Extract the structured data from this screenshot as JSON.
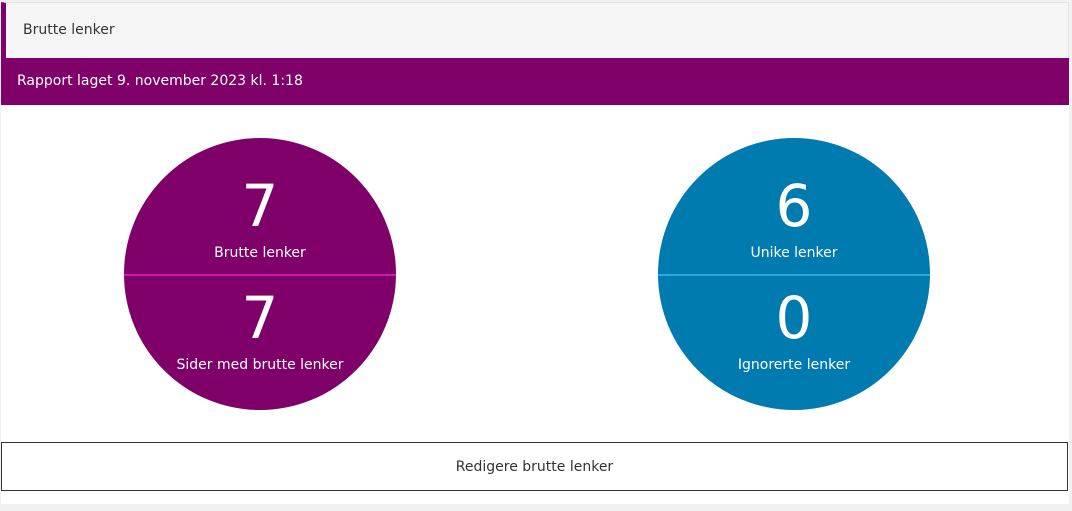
{
  "header": {
    "title": "Brutte lenker"
  },
  "report": {
    "text": "Rapport laget 9. november 2023 kl. 1:18"
  },
  "stats": {
    "left": {
      "top_value": "7",
      "top_label": "Brutte lenker",
      "bottom_value": "7",
      "bottom_label": "Sider med brutte lenker",
      "color": "#800069"
    },
    "right": {
      "top_value": "6",
      "top_label": "Unike lenker",
      "bottom_value": "0",
      "bottom_label": "Ignorerte lenker",
      "color": "#007baf"
    }
  },
  "actions": {
    "edit_label": "Redigere brutte lenker"
  }
}
